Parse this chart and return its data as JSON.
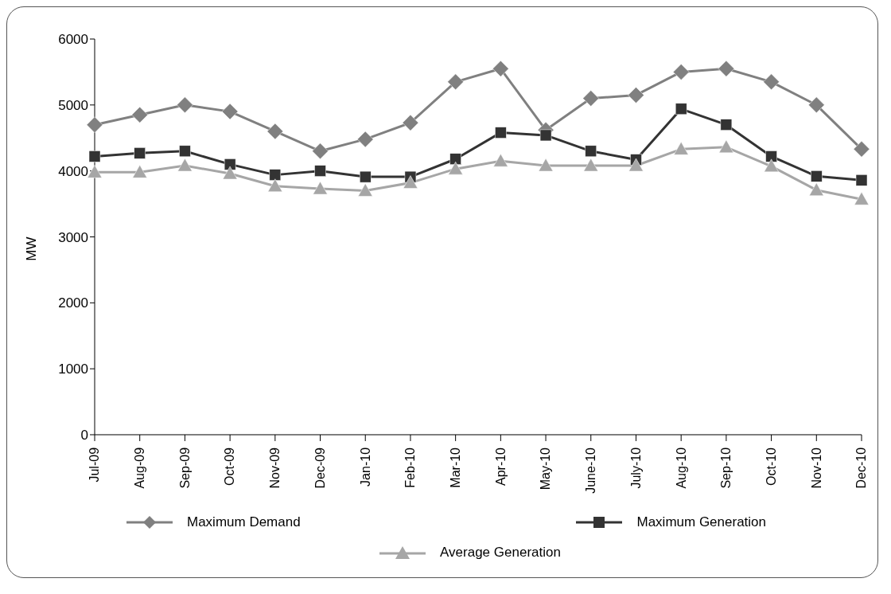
{
  "chart_data": {
    "type": "line",
    "ylabel": "MW",
    "categories": [
      "Jul-09",
      "Aug-09",
      "Sep-09",
      "Oct-09",
      "Nov-09",
      "Dec-09",
      "Jan-10",
      "Feb-10",
      "Mar-10",
      "Apr-10",
      "May-10",
      "June-10",
      "July-10",
      "Aug-10",
      "Sep-10",
      "Oct-10",
      "Nov-10",
      "Dec-10"
    ],
    "series": [
      {
        "name": "Maximum Demand",
        "color": "#808080",
        "marker": "diamond",
        "values": [
          4700,
          4850,
          5000,
          4900,
          4600,
          4300,
          4480,
          4730,
          5350,
          5550,
          4620,
          5100,
          5150,
          5500,
          5550,
          5350,
          5000,
          4330
        ]
      },
      {
        "name": "Maximum Generation",
        "color": "#333333",
        "marker": "square",
        "values": [
          4220,
          4270,
          4300,
          4100,
          3940,
          4000,
          3910,
          3910,
          4180,
          4580,
          4540,
          4300,
          4170,
          4940,
          4700,
          4220,
          3920,
          3860
        ]
      },
      {
        "name": "Average Generation",
        "color": "#a6a6a6",
        "marker": "triangle",
        "values": [
          3980,
          3980,
          4080,
          3960,
          3770,
          3730,
          3700,
          3820,
          4030,
          4150,
          4080,
          4080,
          4080,
          4330,
          4360,
          4070,
          3710,
          3570
        ]
      }
    ],
    "ylim": [
      0,
      6000
    ],
    "yticks": [
      0,
      1000,
      2000,
      3000,
      4000,
      5000,
      6000
    ],
    "grid": false,
    "legend": "bottom",
    "line_style": "solid"
  }
}
